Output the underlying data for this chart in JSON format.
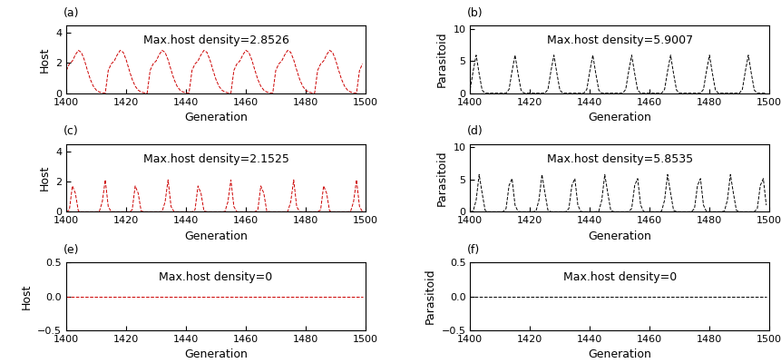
{
  "x_start": 1400,
  "x_end": 1500,
  "x_ticks": [
    1400,
    1420,
    1440,
    1460,
    1480,
    1500
  ],
  "panels": [
    {
      "label": "(a)",
      "ylabel": "Host",
      "annotation": "Max.host density=2.8526",
      "ylim": [
        0,
        4.5
      ],
      "yticks": [
        0,
        2,
        4
      ],
      "color": "#cc0000",
      "max_val": 2.8526
    },
    {
      "label": "(b)",
      "ylabel": "Parasitoid",
      "annotation": "Max.host density=5.9007",
      "ylim": [
        0,
        10.5
      ],
      "yticks": [
        0,
        5,
        10
      ],
      "color": "#000000",
      "max_val": 5.9007
    },
    {
      "label": "(c)",
      "ylabel": "Host",
      "annotation": "Max.host density=2.1525",
      "ylim": [
        0,
        4.5
      ],
      "yticks": [
        0,
        2,
        4
      ],
      "color": "#cc0000",
      "max_val": 2.1525
    },
    {
      "label": "(d)",
      "ylabel": "Parasitoid",
      "annotation": "Max.host density=5.8535",
      "ylim": [
        0,
        10.5
      ],
      "yticks": [
        0,
        5,
        10
      ],
      "color": "#000000",
      "max_val": 5.8535
    },
    {
      "label": "(e)",
      "ylabel": "Host",
      "annotation": "Max.host density=0",
      "ylim": [
        -0.5,
        0.5
      ],
      "yticks": [
        -0.5,
        0,
        0.5
      ],
      "color": "#cc0000",
      "max_val": 0
    },
    {
      "label": "(f)",
      "ylabel": "Parasitoid",
      "annotation": "Max.host density=0",
      "ylim": [
        -0.5,
        0.5
      ],
      "yticks": [
        -0.5,
        0,
        0.5
      ],
      "color": "#000000",
      "max_val": 0
    }
  ],
  "xlabel": "Generation",
  "annotation_fontsize": 9,
  "label_fontsize": 9,
  "tick_fontsize": 8,
  "panel_label_fontsize": 9
}
